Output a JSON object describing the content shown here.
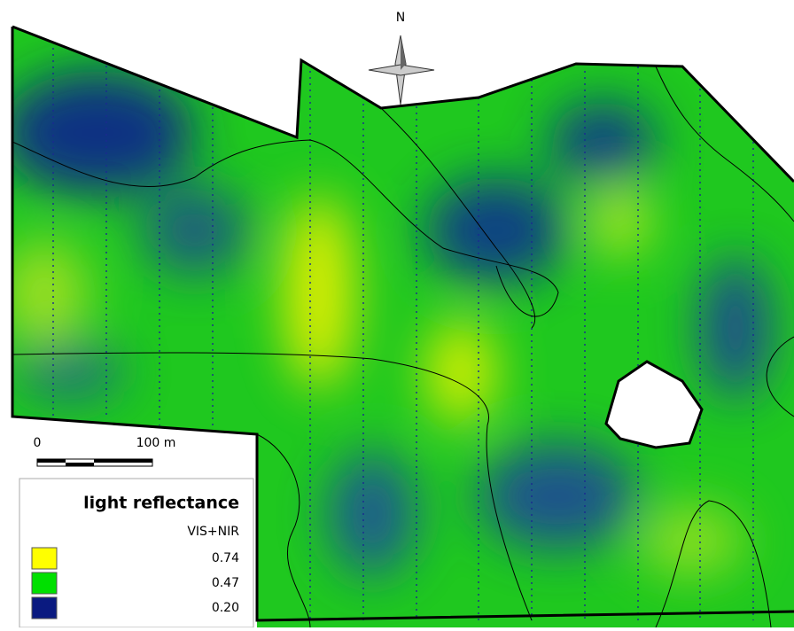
{
  "north_arrow": {
    "label": "N"
  },
  "scale_bar": {
    "start_label": "0",
    "end_label": "100 m"
  },
  "legend": {
    "title": "light reflectance",
    "subtitle": "VIS+NIR",
    "entries": [
      {
        "label": "0.74",
        "color": "#ffff00"
      },
      {
        "label": "0.47",
        "color": "#00e000"
      },
      {
        "label": "0.20",
        "color": "#0a1a80"
      }
    ]
  }
}
